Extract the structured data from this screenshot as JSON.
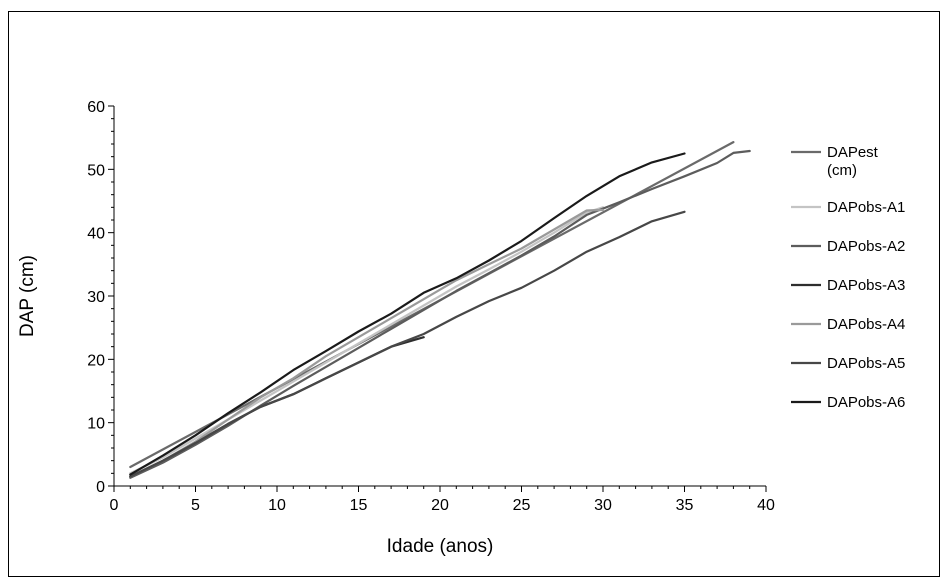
{
  "chart_data": {
    "type": "line",
    "title": "",
    "xlabel": "Idade (anos)",
    "ylabel": "DAP (cm)",
    "xlim": [
      0,
      40
    ],
    "ylim": [
      0,
      60
    ],
    "xticks": [
      0,
      5,
      10,
      15,
      20,
      25,
      30,
      35,
      40
    ],
    "yticks": [
      0,
      10,
      20,
      30,
      40,
      50,
      60
    ],
    "grid": false,
    "legend_position": "right",
    "series": [
      {
        "name": "DAPest (cm)",
        "color": "#6a6a6a",
        "x": [
          1,
          38
        ],
        "y": [
          3.0,
          54.3
        ]
      },
      {
        "name": "DAPobs-A1",
        "color": "#c4c4c4",
        "x": [
          1,
          3,
          5,
          7,
          9,
          11,
          13,
          15,
          17,
          19,
          21,
          23,
          25,
          27,
          29,
          30
        ],
        "y": [
          2.0,
          4.5,
          7.5,
          10.5,
          13.5,
          16.5,
          19.5,
          22.5,
          25.5,
          28.5,
          31.5,
          34.2,
          37.0,
          40.0,
          43.2,
          44.0
        ]
      },
      {
        "name": "DAPobs-A2",
        "color": "#5c5c5c",
        "x": [
          1,
          3,
          5,
          7,
          9,
          11,
          13,
          15,
          17,
          19,
          21,
          23,
          25,
          27,
          29,
          31,
          33,
          35,
          37,
          38,
          39
        ],
        "y": [
          1.3,
          3.7,
          6.5,
          9.5,
          12.7,
          15.8,
          18.8,
          21.8,
          24.8,
          27.8,
          30.8,
          33.6,
          36.4,
          39.4,
          42.8,
          44.8,
          46.9,
          48.9,
          51.0,
          52.6,
          52.9
        ]
      },
      {
        "name": "DAPobs-A3",
        "color": "#2e2e2e",
        "x": [
          1,
          3,
          5,
          7,
          9,
          11,
          13,
          15,
          17,
          19
        ],
        "y": [
          1.5,
          4.0,
          6.8,
          9.8,
          12.5,
          14.5,
          17.0,
          19.5,
          22.0,
          23.5
        ]
      },
      {
        "name": "DAPobs-A4",
        "color": "#9a9a9a",
        "x": [
          1,
          3,
          5,
          7,
          9,
          11,
          13,
          15,
          17,
          19,
          21,
          23,
          25,
          27,
          29,
          30
        ],
        "y": [
          1.5,
          4.0,
          7.0,
          10.5,
          14.0,
          17.0,
          20.5,
          23.5,
          26.5,
          29.5,
          32.5,
          35.0,
          37.5,
          40.5,
          43.5,
          43.6
        ]
      },
      {
        "name": "DAPobs-A5",
        "color": "#474747",
        "x": [
          1,
          3,
          5,
          7,
          9,
          11,
          13,
          15,
          17,
          19,
          21,
          23,
          25,
          27,
          29,
          31,
          33,
          35
        ],
        "y": [
          1.5,
          4.0,
          6.8,
          9.8,
          12.5,
          14.5,
          17.0,
          19.5,
          22.0,
          24.0,
          26.7,
          29.2,
          31.3,
          34.0,
          37.0,
          39.3,
          41.8,
          43.3
        ]
      },
      {
        "name": "DAPobs-A6",
        "color": "#1a1a1a",
        "x": [
          1,
          3,
          5,
          7,
          9,
          11,
          13,
          15,
          17,
          19,
          21,
          23,
          25,
          27,
          29,
          31,
          33,
          35
        ],
        "y": [
          1.8,
          4.8,
          8.0,
          11.5,
          14.8,
          18.3,
          21.3,
          24.4,
          27.2,
          30.5,
          32.8,
          35.6,
          38.7,
          42.3,
          45.8,
          48.9,
          51.1,
          52.5
        ]
      }
    ]
  }
}
